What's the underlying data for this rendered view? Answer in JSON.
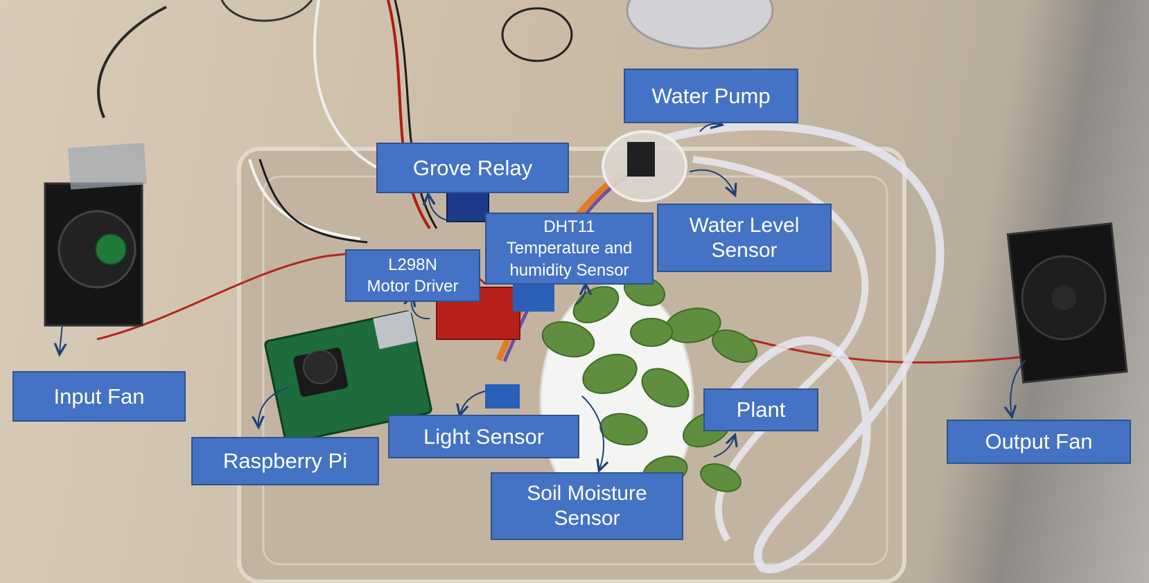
{
  "labels": {
    "water_pump": "Water Pump",
    "grove_relay": "Grove Relay",
    "dht11": "DHT11\nTemperature and\nhumidity Sensor",
    "water_level": "Water Level\nSensor",
    "l298n": "L298N\nMotor Driver",
    "input_fan": "Input Fan",
    "raspberry_pi": "Raspberry Pi",
    "light_sensor": "Light Sensor",
    "plant": "Plant",
    "soil_moisture": "Soil Moisture\nSensor",
    "output_fan": "Output Fan"
  },
  "colors": {
    "label_fill": "#4472c4",
    "label_border": "#2f528f",
    "label_text": "#ffffff",
    "arrow": "#1f3f7a"
  }
}
